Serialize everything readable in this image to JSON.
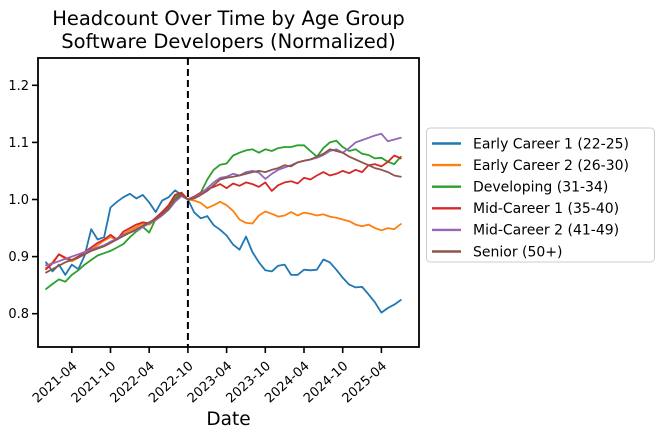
{
  "chart_data": {
    "type": "line",
    "title": "Headcount Over Time by Age Group",
    "subtitle": "Software Developers (Normalized)",
    "xlabel": "Date",
    "ylabel": "",
    "grid": false,
    "normalized_value": 1.0,
    "ylim": [
      0.74,
      1.25
    ],
    "y_ticks": [
      0.8,
      0.9,
      1.0,
      1.1,
      1.2
    ],
    "y_tick_labels": [
      "0.8",
      "0.9",
      "1.0",
      "1.1",
      "1.2"
    ],
    "x_tick_labels": [
      "2021-04",
      "2021-10",
      "2022-04",
      "2022-10",
      "2023-04",
      "2023-10",
      "2024-04",
      "2024-10",
      "2025-04"
    ],
    "vline": {
      "x": "2022-10",
      "style": "dashed",
      "color": "#000000"
    },
    "legend": {
      "position": "outside-right"
    },
    "x": [
      "2020-12",
      "2021-01",
      "2021-02",
      "2021-03",
      "2021-04",
      "2021-05",
      "2021-06",
      "2021-07",
      "2021-08",
      "2021-09",
      "2021-10",
      "2021-11",
      "2021-12",
      "2022-01",
      "2022-02",
      "2022-03",
      "2022-04",
      "2022-05",
      "2022-06",
      "2022-07",
      "2022-08",
      "2022-09",
      "2022-10",
      "2022-11",
      "2022-12",
      "2023-01",
      "2023-02",
      "2023-03",
      "2023-04",
      "2023-05",
      "2023-06",
      "2023-07",
      "2023-08",
      "2023-09",
      "2023-10",
      "2023-11",
      "2023-12",
      "2024-01",
      "2024-02",
      "2024-03",
      "2024-04",
      "2024-05",
      "2024-06",
      "2024-07",
      "2024-08",
      "2024-09",
      "2024-10",
      "2024-11",
      "2024-12",
      "2025-01",
      "2025-02",
      "2025-03",
      "2025-04",
      "2025-05",
      "2025-06",
      "2025-07"
    ],
    "series": [
      {
        "name": "Early Career 1 (22-25)",
        "color": "#1f77b4",
        "values": [
          0.89,
          0.874,
          0.886,
          0.868,
          0.886,
          0.878,
          0.902,
          0.948,
          0.93,
          0.934,
          0.986,
          0.996,
          1.004,
          1.01,
          1.002,
          1.008,
          0.995,
          0.978,
          0.998,
          1.004,
          1.016,
          1.008,
          1.0,
          0.977,
          0.967,
          0.971,
          0.955,
          0.947,
          0.937,
          0.921,
          0.912,
          0.935,
          0.908,
          0.89,
          0.876,
          0.874,
          0.884,
          0.886,
          0.868,
          0.868,
          0.877,
          0.876,
          0.877,
          0.895,
          0.89,
          0.877,
          0.863,
          0.851,
          0.846,
          0.847,
          0.834,
          0.82,
          0.802,
          0.81,
          0.816,
          0.824
        ]
      },
      {
        "name": "Early Career 2 (26-30)",
        "color": "#ff7f0e",
        "values": [
          0.88,
          0.89,
          0.904,
          0.896,
          0.892,
          0.898,
          0.906,
          0.912,
          0.92,
          0.928,
          0.934,
          0.93,
          0.94,
          0.946,
          0.952,
          0.958,
          0.956,
          0.964,
          0.974,
          0.986,
          1.006,
          1.01,
          1.0,
          0.998,
          0.994,
          0.985,
          0.99,
          0.996,
          0.99,
          0.98,
          0.965,
          0.959,
          0.958,
          0.972,
          0.979,
          0.975,
          0.97,
          0.972,
          0.978,
          0.972,
          0.977,
          0.975,
          0.972,
          0.974,
          0.97,
          0.968,
          0.965,
          0.962,
          0.956,
          0.953,
          0.956,
          0.95,
          0.946,
          0.95,
          0.948,
          0.957
        ]
      },
      {
        "name": "Developing (31-34)",
        "color": "#2ca02c",
        "values": [
          0.843,
          0.852,
          0.86,
          0.856,
          0.868,
          0.876,
          0.886,
          0.894,
          0.902,
          0.906,
          0.91,
          0.916,
          0.922,
          0.934,
          0.944,
          0.952,
          0.942,
          0.966,
          0.978,
          0.988,
          1.004,
          1.01,
          1.0,
          1.005,
          1.012,
          1.035,
          1.052,
          1.061,
          1.063,
          1.077,
          1.082,
          1.086,
          1.088,
          1.082,
          1.088,
          1.085,
          1.09,
          1.092,
          1.092,
          1.095,
          1.095,
          1.085,
          1.075,
          1.09,
          1.1,
          1.103,
          1.092,
          1.085,
          1.088,
          1.08,
          1.078,
          1.072,
          1.073,
          1.066,
          1.062,
          1.075
        ]
      },
      {
        "name": "Mid-Career 1 (35-40)",
        "color": "#d62728",
        "values": [
          0.878,
          0.888,
          0.904,
          0.898,
          0.894,
          0.9,
          0.908,
          0.916,
          0.924,
          0.93,
          0.938,
          0.93,
          0.944,
          0.95,
          0.956,
          0.96,
          0.958,
          0.968,
          0.978,
          0.99,
          1.008,
          1.012,
          1.0,
          1.005,
          1.012,
          1.018,
          1.022,
          1.027,
          1.02,
          1.028,
          1.024,
          1.03,
          1.027,
          1.022,
          1.03,
          1.015,
          1.025,
          1.03,
          1.032,
          1.028,
          1.038,
          1.035,
          1.042,
          1.048,
          1.042,
          1.045,
          1.05,
          1.046,
          1.052,
          1.048,
          1.06,
          1.062,
          1.058,
          1.066,
          1.077,
          1.072
        ]
      },
      {
        "name": "Mid-Career 2 (41-49)",
        "color": "#9467bd",
        "values": [
          0.885,
          0.888,
          0.892,
          0.896,
          0.9,
          0.904,
          0.908,
          0.912,
          0.916,
          0.92,
          0.926,
          0.932,
          0.938,
          0.942,
          0.946,
          0.952,
          0.958,
          0.964,
          0.972,
          0.982,
          0.996,
          1.006,
          1.0,
          1.003,
          1.01,
          1.02,
          1.03,
          1.038,
          1.04,
          1.045,
          1.042,
          1.048,
          1.05,
          1.047,
          1.036,
          1.045,
          1.052,
          1.056,
          1.06,
          1.065,
          1.068,
          1.07,
          1.073,
          1.078,
          1.085,
          1.088,
          1.082,
          1.09,
          1.1,
          1.104,
          1.108,
          1.112,
          1.115,
          1.102,
          1.105,
          1.108
        ]
      },
      {
        "name": "Senior (50+)",
        "color": "#8c564b",
        "values": [
          0.872,
          0.878,
          0.884,
          0.89,
          0.894,
          0.898,
          0.904,
          0.91,
          0.914,
          0.918,
          0.924,
          0.93,
          0.936,
          0.942,
          0.948,
          0.954,
          0.96,
          0.966,
          0.974,
          0.984,
          1.0,
          1.008,
          1.0,
          1.002,
          1.008,
          1.015,
          1.025,
          1.035,
          1.038,
          1.04,
          1.042,
          1.045,
          1.048,
          1.05,
          1.048,
          1.052,
          1.055,
          1.06,
          1.058,
          1.065,
          1.068,
          1.07,
          1.075,
          1.08,
          1.088,
          1.085,
          1.082,
          1.075,
          1.07,
          1.065,
          1.06,
          1.055,
          1.052,
          1.048,
          1.042,
          1.04
        ]
      }
    ]
  }
}
